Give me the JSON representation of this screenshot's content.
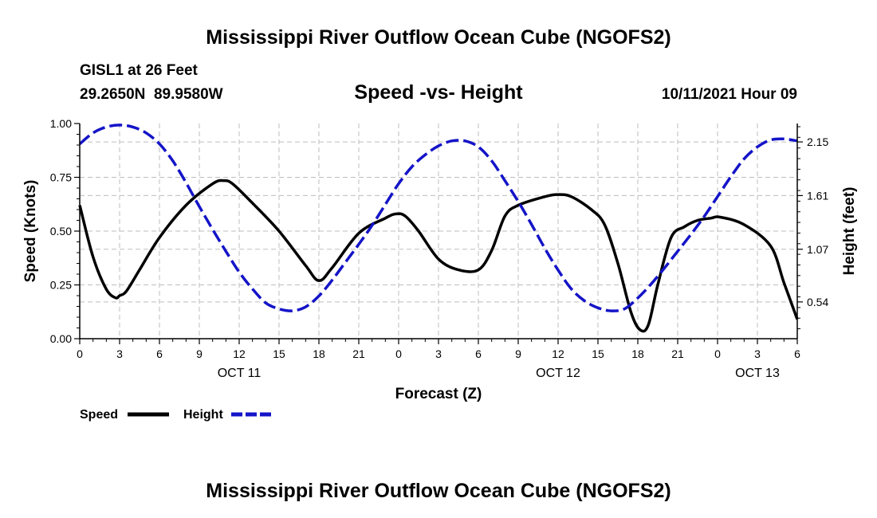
{
  "chart_data": {
    "type": "line",
    "title": "Mississippi River Outflow Ocean Cube (NGOFS2)",
    "footer_title": "Mississippi River Outflow Ocean Cube (NGOFS2)",
    "subtitle": "Speed -vs- Height",
    "station": "GISL1 at 26 Feet",
    "coordinates": "29.2650N  89.9580W",
    "timestamp": "10/11/2021 Hour 09",
    "xlabel": "Forecast (Z)",
    "ylabel_left": "Speed (Knots)",
    "ylabel_right": "Height (feet)",
    "x_range_hours": [
      0,
      54
    ],
    "x_ticks": [
      {
        "h": 0,
        "label": "0"
      },
      {
        "h": 3,
        "label": "3"
      },
      {
        "h": 6,
        "label": "6"
      },
      {
        "h": 9,
        "label": "9"
      },
      {
        "h": 12,
        "label": "12"
      },
      {
        "h": 15,
        "label": "15"
      },
      {
        "h": 18,
        "label": "18"
      },
      {
        "h": 21,
        "label": "21"
      },
      {
        "h": 24,
        "label": "0"
      },
      {
        "h": 27,
        "label": "3"
      },
      {
        "h": 30,
        "label": "6"
      },
      {
        "h": 33,
        "label": "9"
      },
      {
        "h": 36,
        "label": "12"
      },
      {
        "h": 39,
        "label": "15"
      },
      {
        "h": 42,
        "label": "18"
      },
      {
        "h": 45,
        "label": "21"
      },
      {
        "h": 48,
        "label": "0"
      },
      {
        "h": 51,
        "label": "3"
      },
      {
        "h": 54,
        "label": "6"
      }
    ],
    "date_labels": [
      {
        "h": 12,
        "label": "OCT 11"
      },
      {
        "h": 36,
        "label": "OCT 12"
      },
      {
        "h": 51,
        "label": "OCT 13"
      }
    ],
    "y_left_range": [
      0,
      1
    ],
    "y_left_ticks": [
      "0.00",
      "0.25",
      "0.50",
      "0.75",
      "1.00"
    ],
    "y_right_range": [
      0.17,
      2.335
    ],
    "y_right_ticks": [
      "0.54",
      "1.07",
      "1.61",
      "2.15"
    ],
    "grid": true,
    "legend": [
      {
        "name": "Speed",
        "color": "#000000",
        "style": "solid"
      },
      {
        "name": "Height",
        "color": "#1414c8",
        "style": "dashed"
      }
    ],
    "series": [
      {
        "name": "Speed",
        "axis": "left",
        "color": "#000000",
        "x": [
          0,
          1,
          2,
          2.7,
          3,
          3.5,
          4.5,
          6,
          8,
          10,
          10.8,
          11.5,
          13,
          15,
          17,
          18,
          19,
          21,
          23,
          23.8,
          24.5,
          25.5,
          27,
          28.5,
          30,
          31,
          32,
          33,
          35,
          36,
          37,
          38.5,
          39.5,
          40.5,
          41.5,
          42.2,
          42.8,
          43.5,
          44.5,
          45.5,
          46.5,
          47.5,
          48.2,
          50,
          52,
          53,
          54
        ],
        "values": [
          0.62,
          0.38,
          0.23,
          0.19,
          0.2,
          0.22,
          0.32,
          0.47,
          0.62,
          0.72,
          0.735,
          0.72,
          0.63,
          0.5,
          0.34,
          0.27,
          0.33,
          0.49,
          0.56,
          0.58,
          0.57,
          0.5,
          0.37,
          0.32,
          0.32,
          0.41,
          0.57,
          0.62,
          0.66,
          0.67,
          0.66,
          0.6,
          0.53,
          0.35,
          0.12,
          0.04,
          0.065,
          0.25,
          0.47,
          0.52,
          0.55,
          0.56,
          0.565,
          0.53,
          0.43,
          0.26,
          0.09
        ]
      },
      {
        "name": "Height",
        "axis": "right",
        "color": "#1414c8",
        "x": [
          0,
          1,
          2,
          3,
          4,
          5,
          6,
          7,
          8,
          9,
          10,
          11,
          12,
          13,
          14,
          15,
          16,
          17,
          18,
          19,
          20,
          21,
          22,
          23,
          24,
          25,
          26,
          27,
          28,
          29,
          30,
          31,
          32,
          33,
          34,
          35,
          36,
          37,
          38,
          39,
          40,
          41,
          42,
          43,
          44,
          45,
          46,
          47,
          48,
          49,
          50,
          51,
          52,
          53,
          54
        ],
        "values": [
          2.13,
          2.24,
          2.3,
          2.32,
          2.3,
          2.24,
          2.13,
          1.96,
          1.74,
          1.5,
          1.27,
          1.05,
          0.84,
          0.67,
          0.53,
          0.47,
          0.45,
          0.49,
          0.6,
          0.76,
          0.94,
          1.12,
          1.31,
          1.52,
          1.73,
          1.9,
          2.02,
          2.11,
          2.16,
          2.16,
          2.1,
          1.96,
          1.76,
          1.55,
          1.32,
          1.08,
          0.86,
          0.67,
          0.55,
          0.48,
          0.45,
          0.47,
          0.58,
          0.72,
          0.88,
          1.05,
          1.22,
          1.4,
          1.6,
          1.8,
          1.98,
          2.1,
          2.17,
          2.18,
          2.16
        ]
      }
    ]
  }
}
